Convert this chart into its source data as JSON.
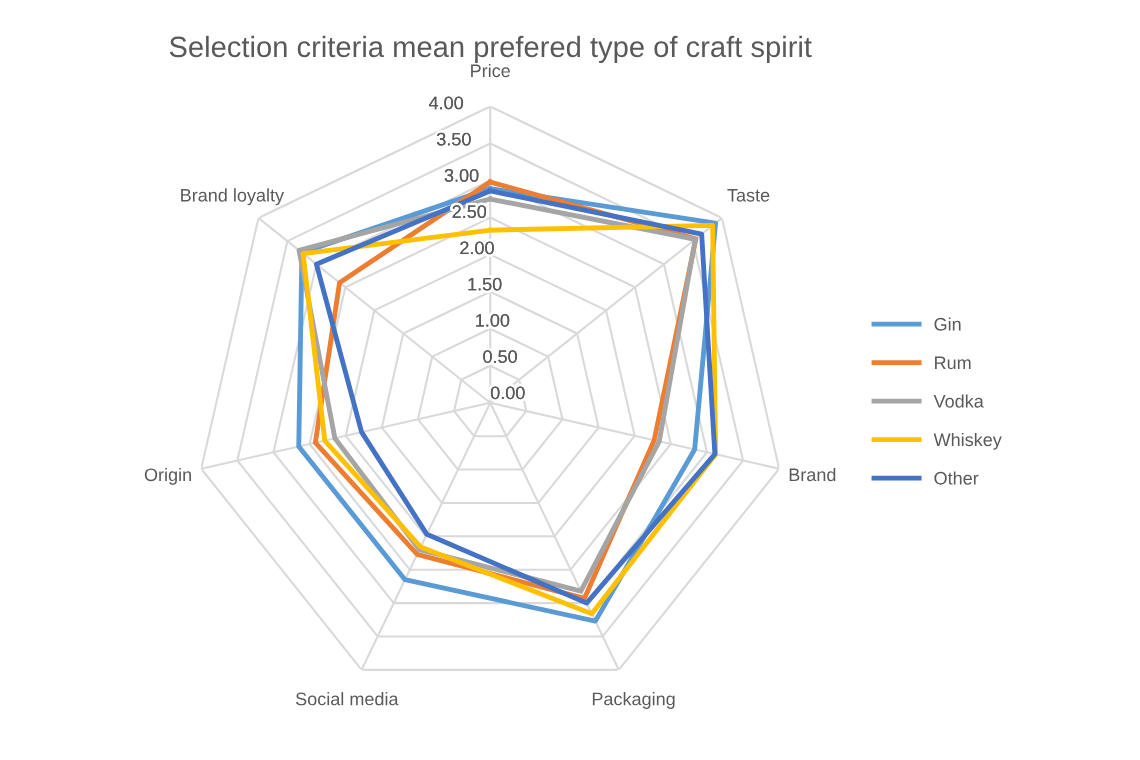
{
  "chart_data": {
    "type": "radar",
    "title": "Selection criteria mean prefered type of craft spirit",
    "categories": [
      "Price",
      "Taste",
      "Brand",
      "Packaging",
      "Social media",
      "Origin",
      "Brand loyalty"
    ],
    "series": [
      {
        "name": "Gin",
        "color": "#5b9bd5",
        "values": [
          2.89,
          3.89,
          2.83,
          3.27,
          2.65,
          2.65,
          3.25
        ]
      },
      {
        "name": "Rum",
        "color": "#ed7d31",
        "values": [
          2.98,
          3.55,
          2.27,
          2.93,
          2.27,
          2.42,
          2.6
        ]
      },
      {
        "name": "Vodka",
        "color": "#a5a5a5",
        "values": [
          2.75,
          3.54,
          2.34,
          2.82,
          2.2,
          2.15,
          3.3
        ]
      },
      {
        "name": "Whiskey",
        "color": "#ffc000",
        "values": [
          2.33,
          3.84,
          3.12,
          3.16,
          2.16,
          2.29,
          3.23
        ]
      },
      {
        "name": "Other",
        "color": "#4472c4",
        "values": [
          2.86,
          3.65,
          3.11,
          3.0,
          1.97,
          1.78,
          3.0
        ]
      }
    ],
    "ylim": [
      0,
      4
    ],
    "yticks": [
      {
        "value": 0,
        "label": "0.00"
      },
      {
        "value": 0.5,
        "label": "0.50"
      },
      {
        "value": 1,
        "label": "1.00"
      },
      {
        "value": 1.5,
        "label": "1.50"
      },
      {
        "value": 2,
        "label": "2.00"
      },
      {
        "value": 2.5,
        "label": "2.50"
      },
      {
        "value": 3,
        "label": "3.00"
      },
      {
        "value": 3.5,
        "label": "3.50"
      },
      {
        "value": 4,
        "label": "4.00"
      }
    ],
    "grid": true,
    "legend": "right",
    "marker": "none",
    "line_style": "solid"
  }
}
